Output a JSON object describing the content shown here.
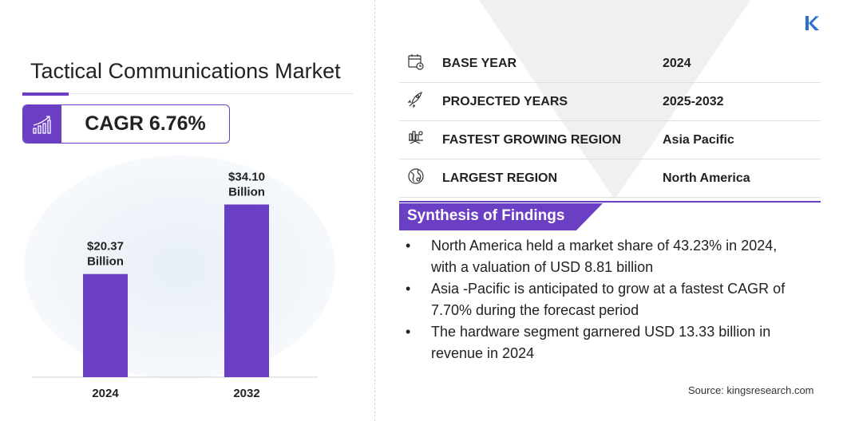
{
  "title": "Tactical Communications Market",
  "cagr": "CAGR 6.76%",
  "chart_data": {
    "type": "bar",
    "categories": [
      "2024",
      "2032"
    ],
    "values": [
      20.37,
      34.1
    ],
    "data_labels": [
      [
        "$20.37",
        "Billion"
      ],
      [
        "$34.10",
        "Billion"
      ]
    ],
    "bar_color": "#6a3fc4",
    "grid": false
  },
  "stats": [
    {
      "icon": "calendar-icon",
      "label": "BASE YEAR",
      "value": "2024"
    },
    {
      "icon": "rocket-icon",
      "label": "PROJECTED YEARS",
      "value": "2025-2032"
    },
    {
      "icon": "growth-region-icon",
      "label": "FASTEST GROWING REGION",
      "value": "Asia Pacific"
    },
    {
      "icon": "globe-icon",
      "label": "LARGEST REGION",
      "value": "North America"
    }
  ],
  "synthesis": {
    "heading": "Synthesis of Findings",
    "bullet": "•",
    "items": [
      "North America held a market share of 43.23% in 2024, with a valuation of USD 8.81 billion",
      "Asia -Pacific is anticipated to grow at a fastest CAGR of 7.70% during the forecast period",
      "The hardware segment garnered USD 13.33 billion in revenue in 2024"
    ]
  },
  "source": "Source:  kingsresearch.com",
  "colors": {
    "accent": "#6a3fc4",
    "logo": "#2a6fd6"
  }
}
